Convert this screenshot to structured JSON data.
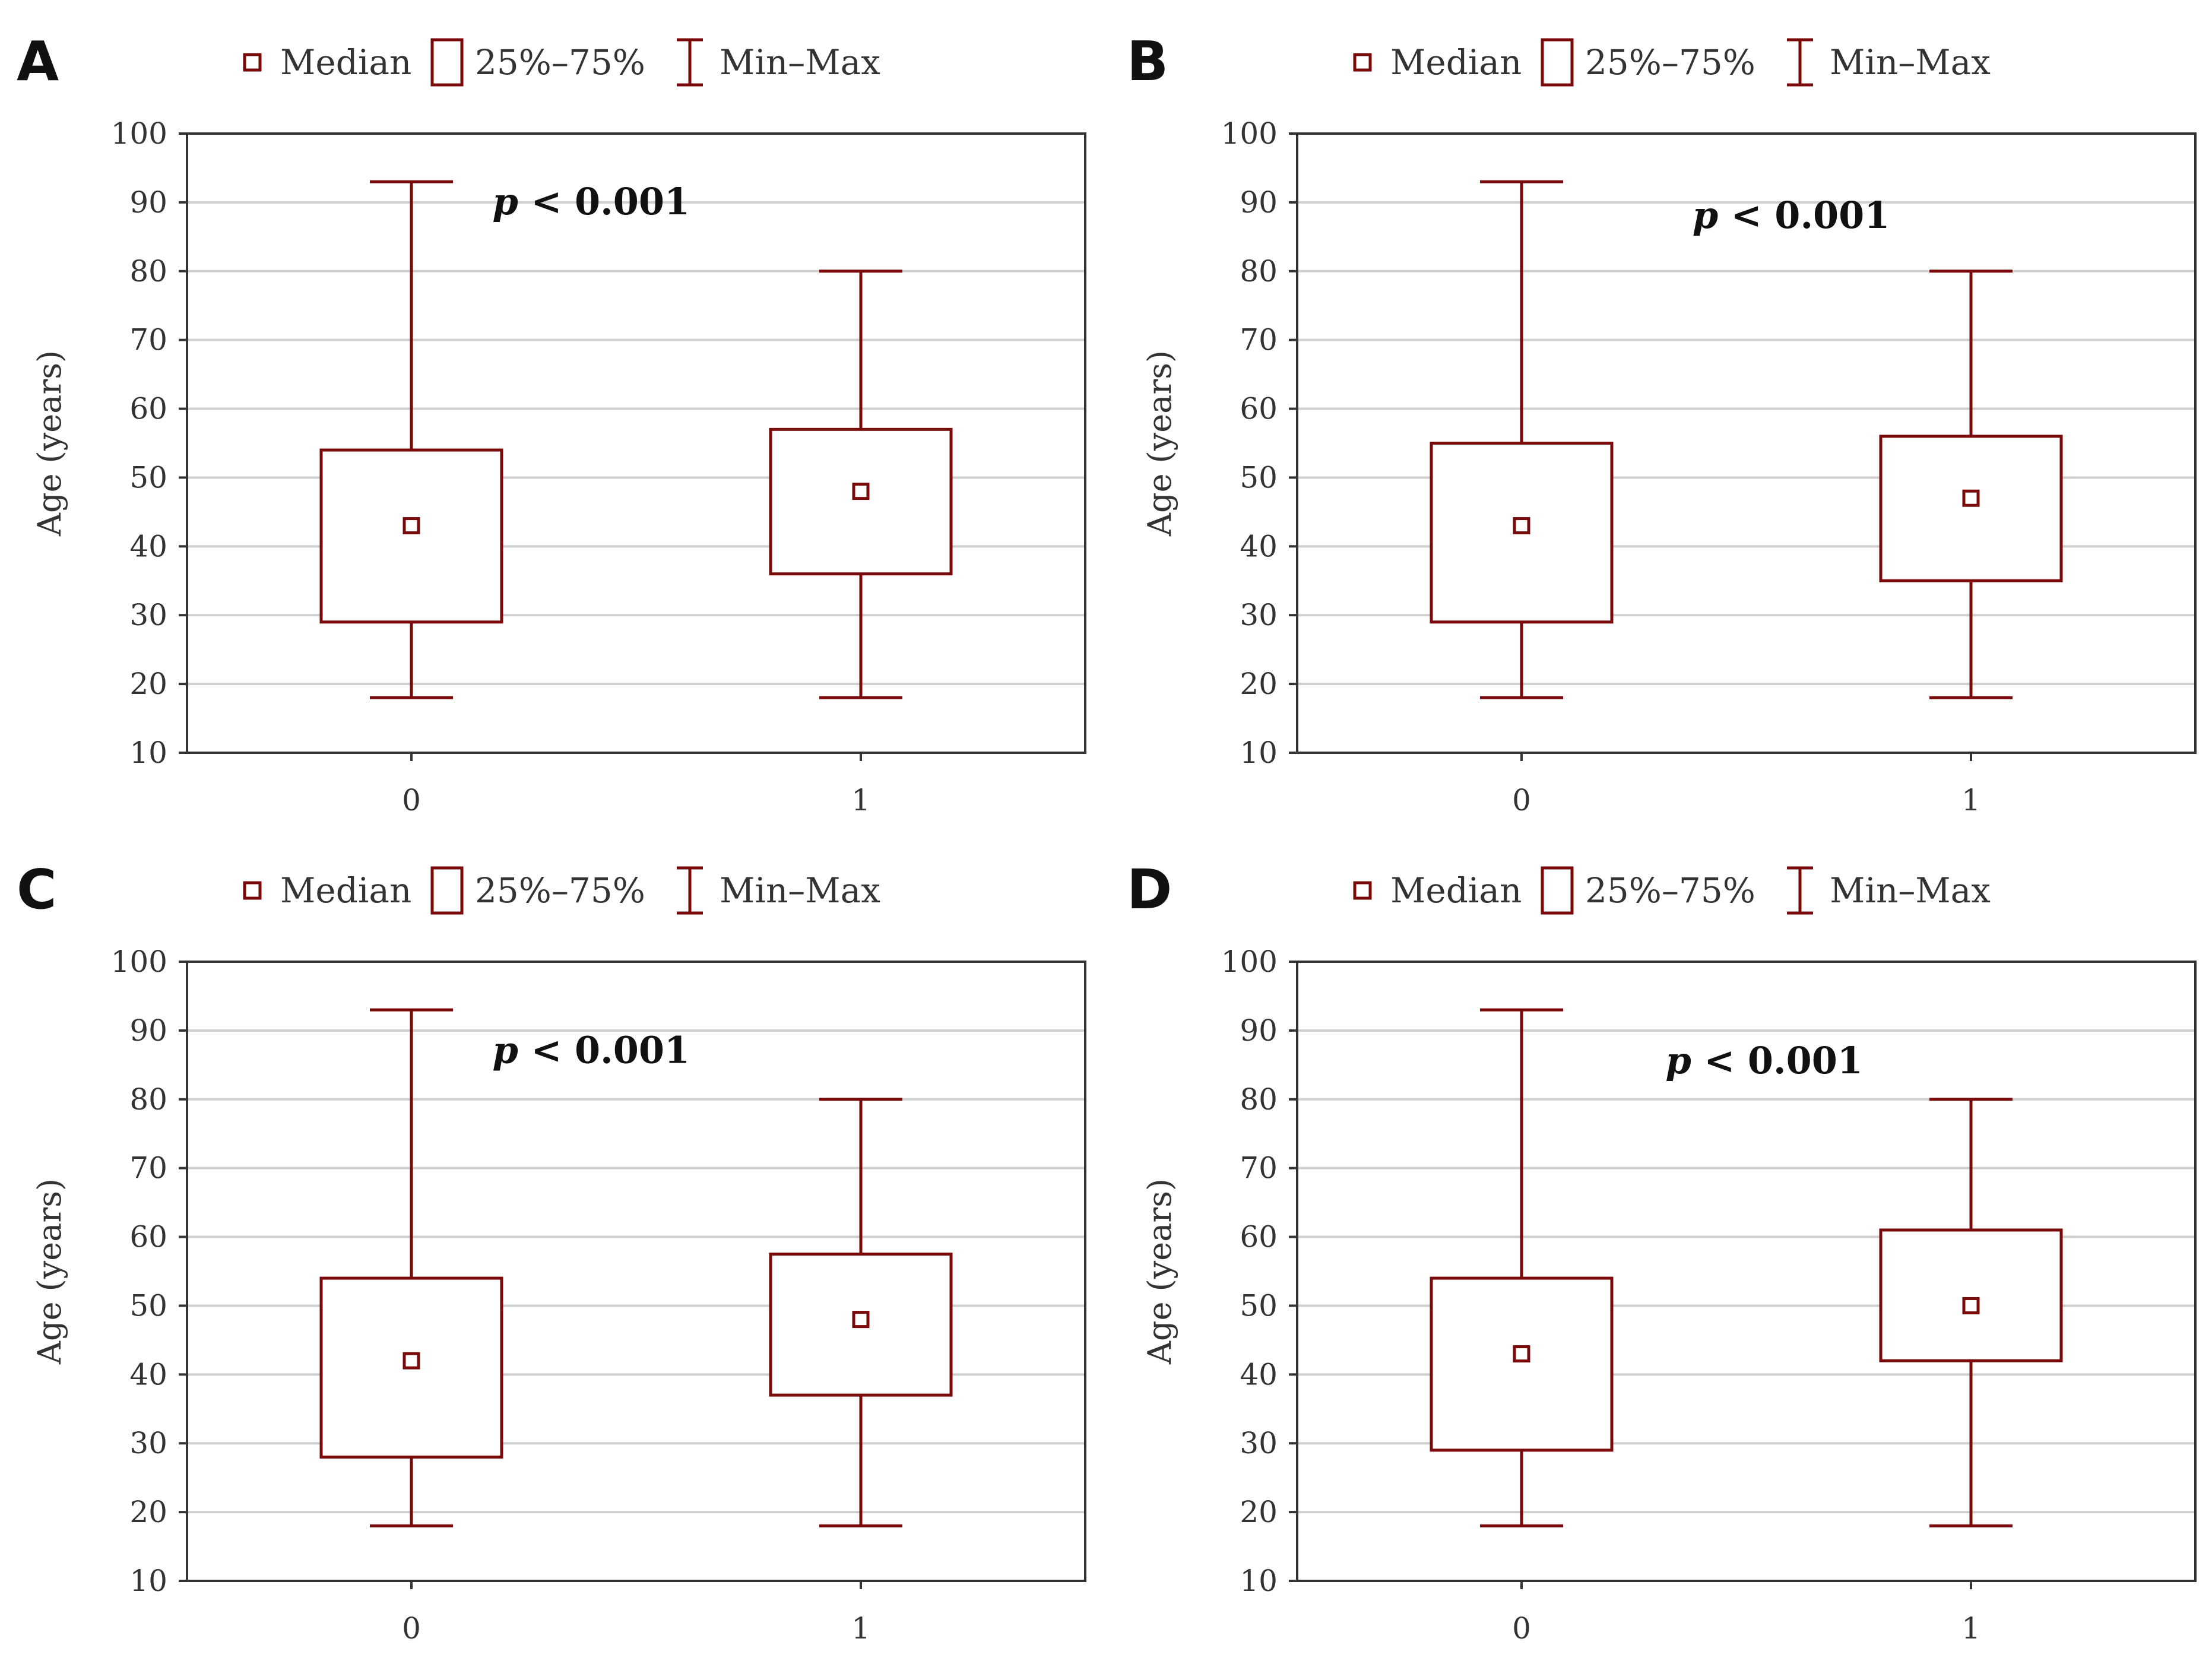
{
  "colors": {
    "box": "#7a0a0a",
    "grid": "#cfcfcf",
    "axis": "#333333",
    "text": "#333333"
  },
  "legend": {
    "median": "Median",
    "iqr": "25%–75%",
    "range": "Min–Max"
  },
  "chart_data": [
    {
      "type": "boxplot",
      "panel": "A",
      "ylabel": "Age (years)",
      "xlabel": "",
      "ylim": [
        10,
        100
      ],
      "yticks": [
        "10",
        "20",
        "30",
        "40",
        "50",
        "60",
        "70",
        "80",
        "90",
        "100"
      ],
      "grid": true,
      "legend_position": "top",
      "annotation": {
        "italic": "p",
        "rest": " < 0.001",
        "x": 0.45,
        "y": 90
      },
      "categories": [
        "0",
        "1"
      ],
      "series": [
        {
          "name": "0",
          "min": 18,
          "q1": 29,
          "median": 43,
          "q3": 54,
          "max": 93
        },
        {
          "name": "1",
          "min": 18,
          "q1": 36,
          "median": 48,
          "q3": 57,
          "max": 80
        }
      ]
    },
    {
      "type": "boxplot",
      "panel": "B",
      "ylabel": "Age (years)",
      "xlabel": "",
      "ylim": [
        10,
        100
      ],
      "yticks": [
        "10",
        "20",
        "30",
        "40",
        "50",
        "60",
        "70",
        "80",
        "90",
        "100"
      ],
      "grid": true,
      "legend_position": "top",
      "annotation": {
        "italic": "p",
        "rest": " < 0.001",
        "x": 0.55,
        "y": 88
      },
      "categories": [
        "0",
        "1"
      ],
      "series": [
        {
          "name": "0",
          "min": 18,
          "q1": 29,
          "median": 43,
          "q3": 55,
          "max": 93
        },
        {
          "name": "1",
          "min": 18,
          "q1": 35,
          "median": 47,
          "q3": 56,
          "max": 80
        }
      ]
    },
    {
      "type": "boxplot",
      "panel": "C",
      "ylabel": "Age (years)",
      "xlabel": "",
      "ylim": [
        10,
        100
      ],
      "yticks": [
        "10",
        "20",
        "30",
        "40",
        "50",
        "60",
        "70",
        "80",
        "90",
        "100"
      ],
      "grid": true,
      "legend_position": "top",
      "annotation": {
        "italic": "p",
        "rest": " < 0.001",
        "x": 0.45,
        "y": 87
      },
      "categories": [
        "0",
        "1"
      ],
      "series": [
        {
          "name": "0",
          "min": 18,
          "q1": 28,
          "median": 42,
          "q3": 54,
          "max": 93
        },
        {
          "name": "1",
          "min": 18,
          "q1": 37,
          "median": 48,
          "q3": 57.5,
          "max": 80
        }
      ]
    },
    {
      "type": "boxplot",
      "panel": "D",
      "ylabel": "Age (years)",
      "xlabel": "",
      "ylim": [
        10,
        100
      ],
      "yticks": [
        "10",
        "20",
        "30",
        "40",
        "50",
        "60",
        "70",
        "80",
        "90",
        "100"
      ],
      "grid": true,
      "legend_position": "top",
      "annotation": {
        "italic": "p",
        "rest": " < 0.001",
        "x": 0.52,
        "y": 85.5
      },
      "categories": [
        "0",
        "1"
      ],
      "series": [
        {
          "name": "0",
          "min": 18,
          "q1": 29,
          "median": 43,
          "q3": 54,
          "max": 93
        },
        {
          "name": "1",
          "min": 18,
          "q1": 42,
          "median": 50,
          "q3": 61,
          "max": 80
        }
      ]
    }
  ]
}
